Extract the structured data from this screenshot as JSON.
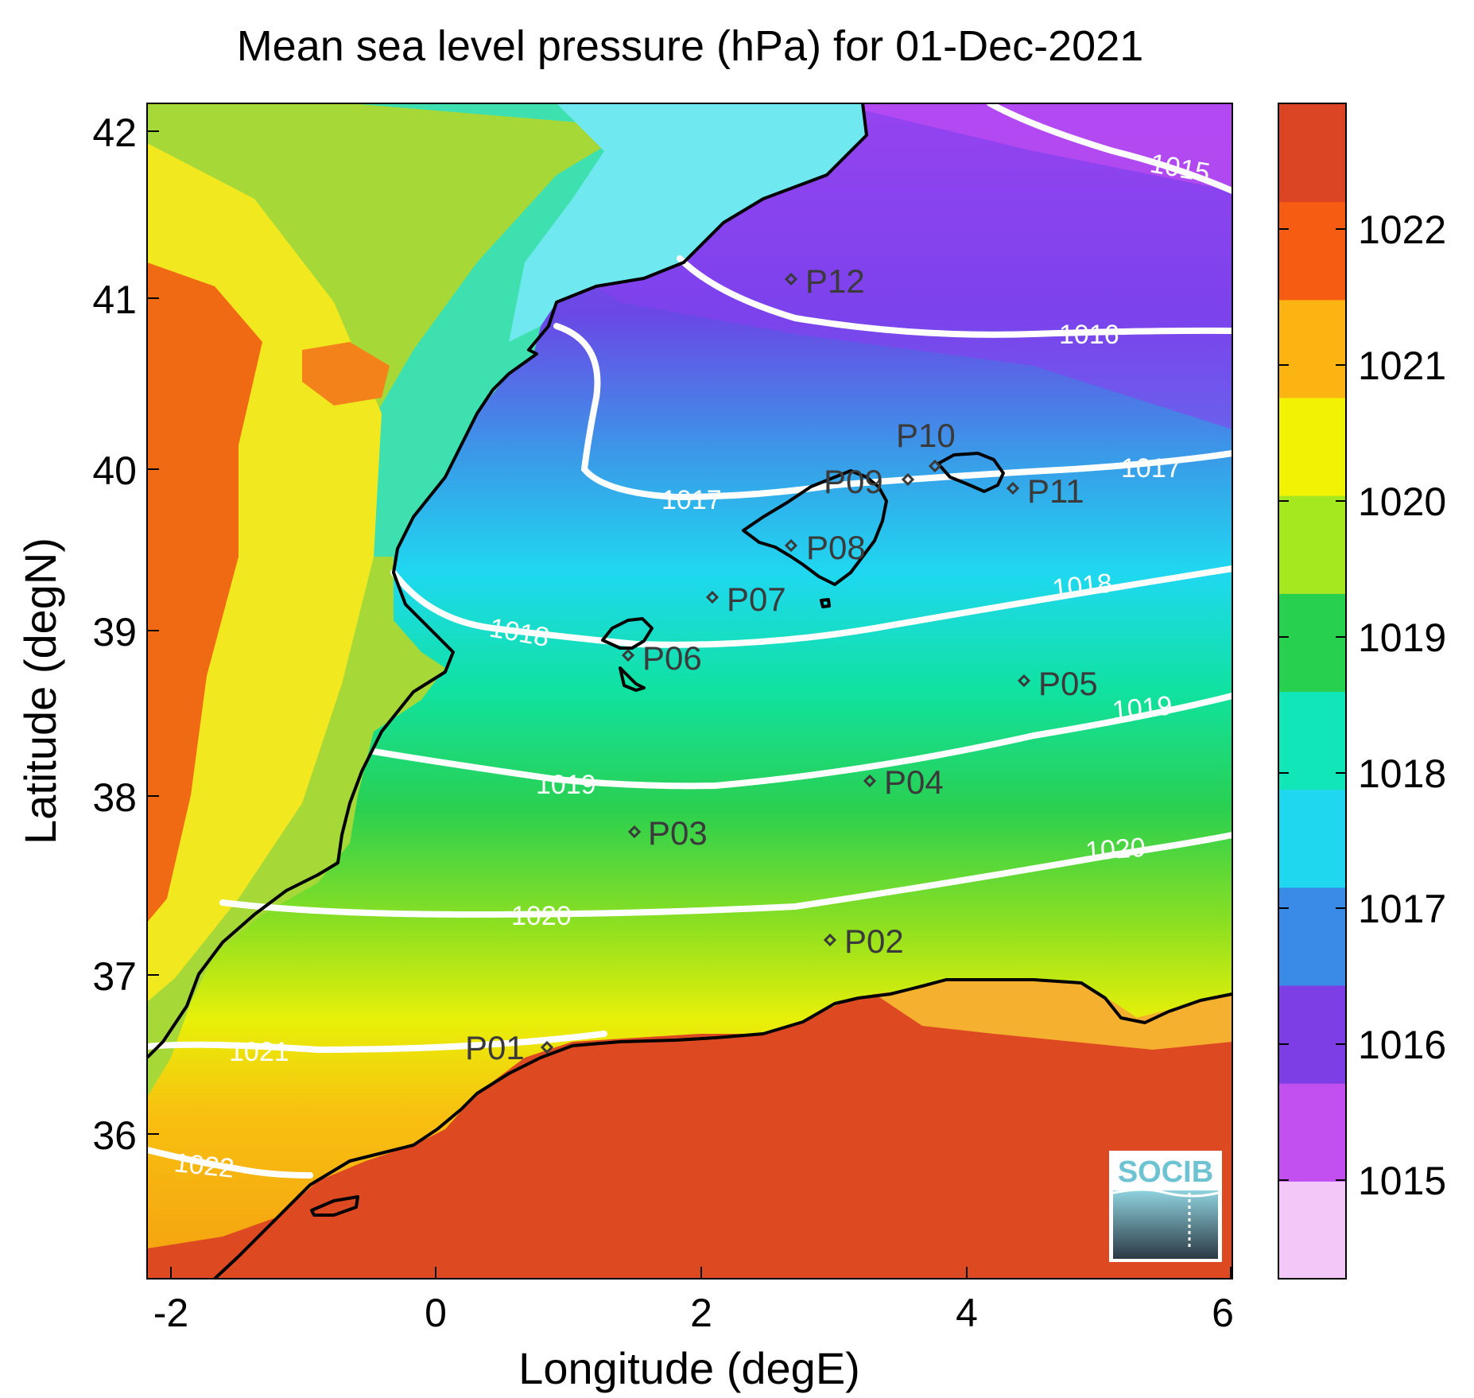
{
  "title": "Mean sea level pressure (hPa) for 01-Dec-2021",
  "xlabel": "Longitude (degE)",
  "ylabel": "Latitude (degN)",
  "x_ticks": [
    "-2",
    "0",
    "2",
    "4",
    "6"
  ],
  "y_ticks": [
    "36",
    "37",
    "38",
    "39",
    "40",
    "41",
    "42"
  ],
  "colorbar": {
    "ticks": [
      "1015",
      "1016",
      "1017",
      "1018",
      "1019",
      "1020",
      "1021",
      "1022"
    ],
    "colors": [
      "#f3c8f8",
      "#c24ff0",
      "#7d3ee6",
      "#3a8ae8",
      "#1fd8f0",
      "#10e6b8",
      "#28d050",
      "#a6e820",
      "#f2f205",
      "#fbb411",
      "#f65d12",
      "#dc4523"
    ]
  },
  "logo": "SOCIB",
  "chart_data": {
    "type": "heatmap",
    "variable": "Mean sea level pressure (hPa)",
    "date": "01-Dec-2021",
    "xlim": [
      -2.2,
      6.0
    ],
    "ylim": [
      35.2,
      42.2
    ],
    "clim": [
      1014.3,
      1022.9
    ],
    "contour_levels": [
      {
        "value": "1015",
        "lon": 5.3,
        "lat": 41.9
      },
      {
        "value": "1016",
        "lon": 5.0,
        "lat": 40.99
      },
      {
        "value": "1017",
        "lon": 1.9,
        "lat": 39.81
      },
      {
        "value": "1017",
        "lon": 4.8,
        "lat": 40.0
      },
      {
        "value": "1018",
        "lon": 1.7,
        "lat": 39.0
      },
      {
        "value": "1018",
        "lon": 4.8,
        "lat": 39.23
      },
      {
        "value": "1019",
        "lon": 1.1,
        "lat": 38.09
      },
      {
        "value": "1019",
        "lon": 5.0,
        "lat": 38.51
      },
      {
        "value": "1020",
        "lon": 0.9,
        "lat": 37.28
      },
      {
        "value": "1020",
        "lon": 5.0,
        "lat": 37.6
      },
      {
        "value": "1021",
        "lon": -1.3,
        "lat": 36.43
      },
      {
        "value": "1022",
        "lon": -1.9,
        "lat": 35.72
      }
    ],
    "stations": [
      {
        "name": "P01",
        "lon": 0.85,
        "lat": 36.5
      },
      {
        "name": "P02",
        "lon": 3.0,
        "lat": 37.15
      },
      {
        "name": "P03",
        "lon": 1.5,
        "lat": 37.8
      },
      {
        "name": "P04",
        "lon": 3.3,
        "lat": 38.1
      },
      {
        "name": "P05",
        "lon": 4.5,
        "lat": 38.7
      },
      {
        "name": "P06",
        "lon": 1.45,
        "lat": 38.85
      },
      {
        "name": "P07",
        "lon": 2.1,
        "lat": 39.2
      },
      {
        "name": "P08",
        "lon": 2.7,
        "lat": 39.5
      },
      {
        "name": "P09",
        "lon": 3.6,
        "lat": 39.9
      },
      {
        "name": "P10",
        "lon": 3.8,
        "lat": 40.0
      },
      {
        "name": "P11",
        "lon": 4.4,
        "lat": 39.85
      },
      {
        "name": "P12",
        "lon": 2.7,
        "lat": 41.1
      }
    ]
  }
}
